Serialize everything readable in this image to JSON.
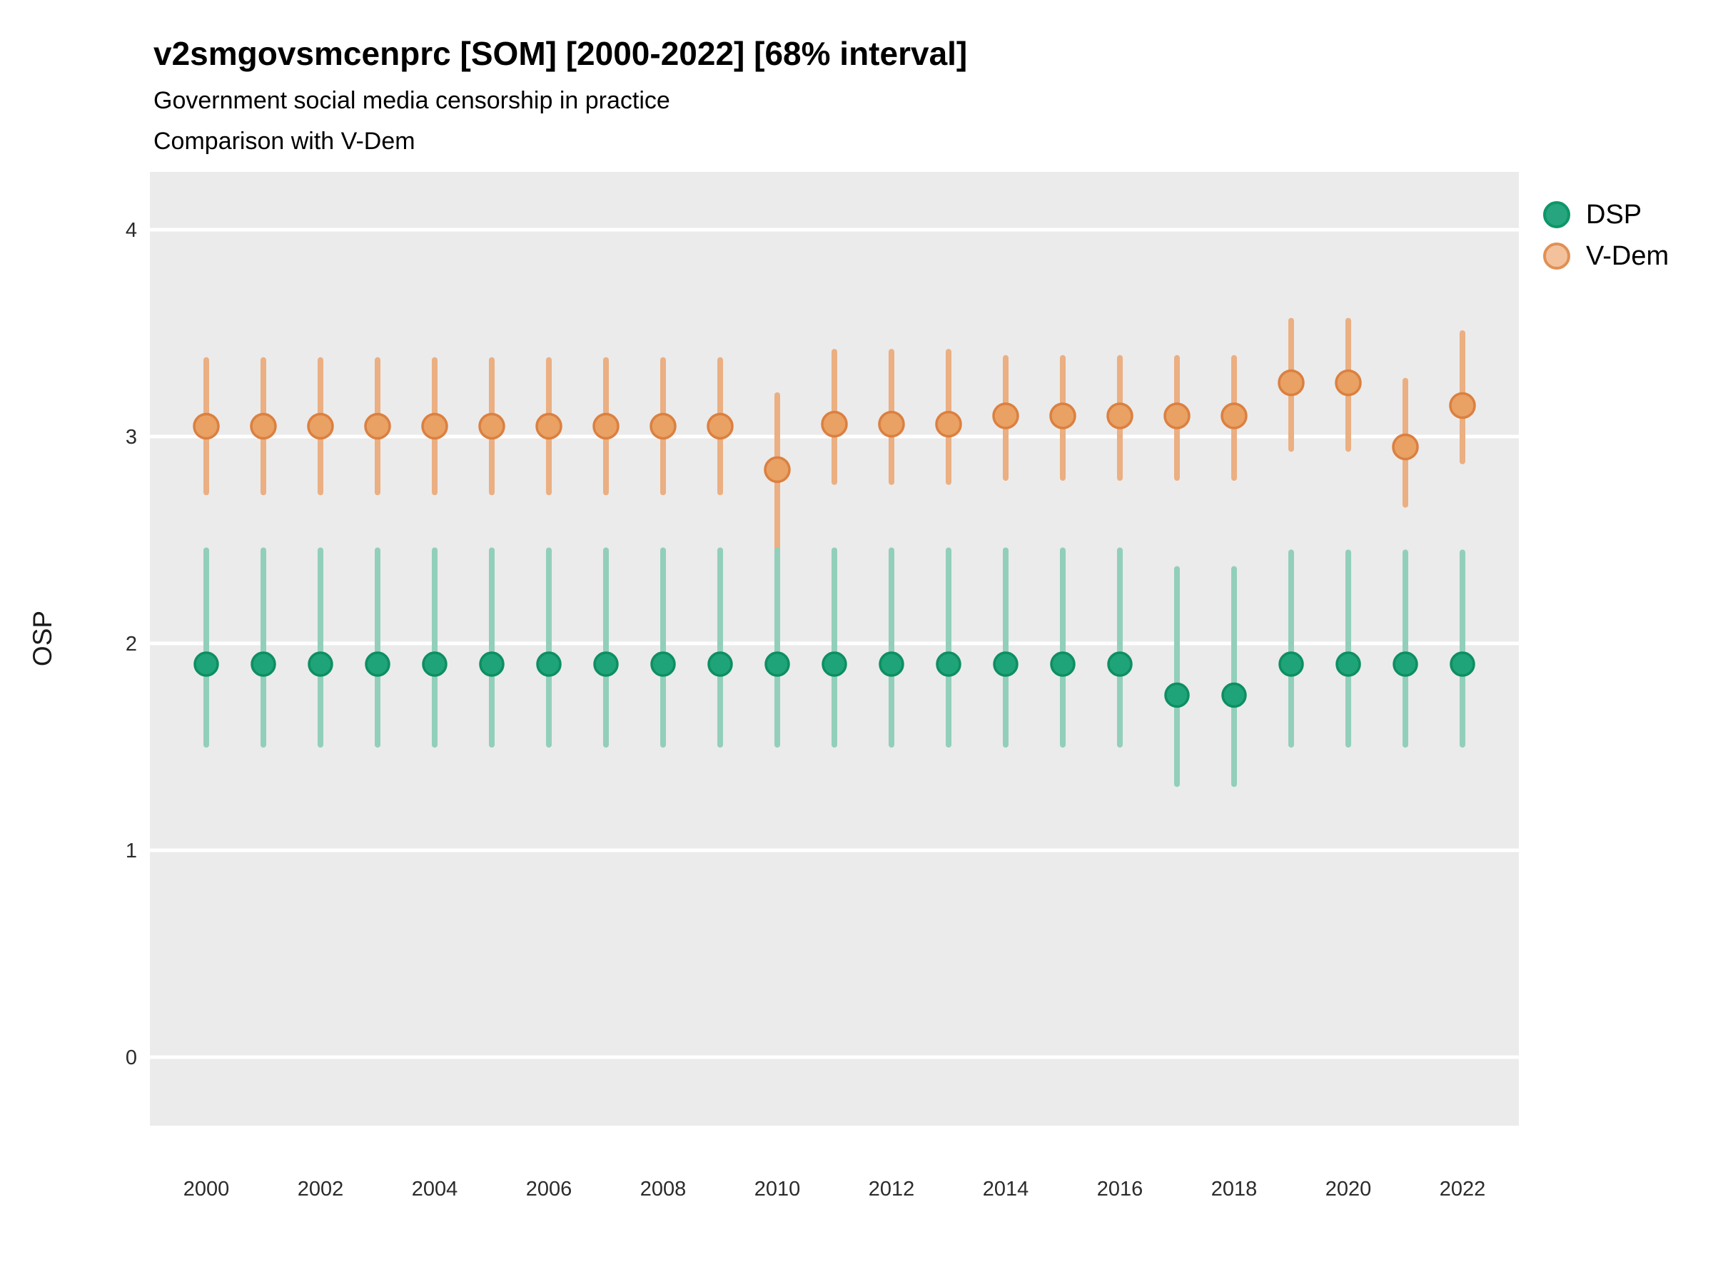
{
  "header": {
    "title": "v2smgovsmcenprc [SOM] [2000-2022] [68% interval]",
    "subtitle1": "Government social media censorship in practice",
    "subtitle2": "Comparison with V-Dem"
  },
  "axes": {
    "y_title": "OSP"
  },
  "legend": {
    "items": [
      {
        "label": "DSP",
        "fill": "#27a57e",
        "stroke": "#0e9668"
      },
      {
        "label": "V-Dem",
        "fill": "#f3c29c",
        "stroke": "#e09055"
      }
    ]
  },
  "colors": {
    "panel": "#ebebeb",
    "gridline": "#ffffff",
    "tick_text": "#2b2b2b",
    "title_text": "#000000"
  },
  "chart_data": {
    "type": "scatter",
    "title": "v2smgovsmcenprc [SOM] [2000-2022] [68% interval]",
    "subtitle": "Government social media censorship in practice — Comparison with V-Dem",
    "xlabel": "",
    "ylabel": "OSP",
    "interval": "68%",
    "grid": "horizontal-only",
    "legend_position": "right",
    "ylim": [
      -0.28,
      4.28
    ],
    "y_ticks": [
      0,
      1,
      2,
      3,
      4
    ],
    "x": [
      2000,
      2001,
      2002,
      2003,
      2004,
      2005,
      2006,
      2007,
      2008,
      2009,
      2010,
      2011,
      2012,
      2013,
      2014,
      2015,
      2016,
      2017,
      2018,
      2019,
      2020,
      2021,
      2022
    ],
    "x_tick_labels": [
      2000,
      2002,
      2004,
      2006,
      2008,
      2010,
      2012,
      2014,
      2016,
      2018,
      2020,
      2022
    ],
    "series": [
      {
        "name": "V-Dem",
        "fill_color": "#e9a164",
        "stroke_color": "#db8040",
        "bar_color": "#ebaf82",
        "marker_radius": 17,
        "values": [
          3.05,
          3.05,
          3.05,
          3.05,
          3.05,
          3.05,
          3.05,
          3.05,
          3.05,
          3.05,
          2.84,
          3.06,
          3.06,
          3.06,
          3.1,
          3.1,
          3.1,
          3.1,
          3.1,
          3.26,
          3.26,
          2.95,
          3.15
        ],
        "lower": [
          2.73,
          2.73,
          2.73,
          2.73,
          2.73,
          2.73,
          2.73,
          2.73,
          2.73,
          2.73,
          2.44,
          2.78,
          2.78,
          2.78,
          2.8,
          2.8,
          2.8,
          2.8,
          2.8,
          2.94,
          2.94,
          2.67,
          2.88
        ],
        "upper": [
          3.37,
          3.37,
          3.37,
          3.37,
          3.37,
          3.37,
          3.37,
          3.37,
          3.37,
          3.37,
          3.2,
          3.41,
          3.41,
          3.41,
          3.38,
          3.38,
          3.38,
          3.38,
          3.38,
          3.56,
          3.56,
          3.27,
          3.5
        ]
      },
      {
        "name": "DSP",
        "fill_color": "#1fa378",
        "stroke_color": "#0e8e63",
        "bar_color": "#92cfba",
        "marker_radius": 16,
        "values": [
          1.9,
          1.9,
          1.9,
          1.9,
          1.9,
          1.9,
          1.9,
          1.9,
          1.9,
          1.9,
          1.9,
          1.9,
          1.9,
          1.9,
          1.9,
          1.9,
          1.9,
          1.75,
          1.75,
          1.9,
          1.9,
          1.9,
          1.9
        ],
        "lower": [
          1.51,
          1.51,
          1.51,
          1.51,
          1.51,
          1.51,
          1.51,
          1.51,
          1.51,
          1.51,
          1.51,
          1.51,
          1.51,
          1.51,
          1.51,
          1.51,
          1.51,
          1.32,
          1.32,
          1.51,
          1.51,
          1.51,
          1.51
        ],
        "upper": [
          2.45,
          2.45,
          2.45,
          2.45,
          2.45,
          2.45,
          2.45,
          2.45,
          2.45,
          2.45,
          2.45,
          2.45,
          2.45,
          2.45,
          2.45,
          2.45,
          2.45,
          2.36,
          2.36,
          2.44,
          2.44,
          2.44,
          2.44
        ]
      }
    ]
  }
}
